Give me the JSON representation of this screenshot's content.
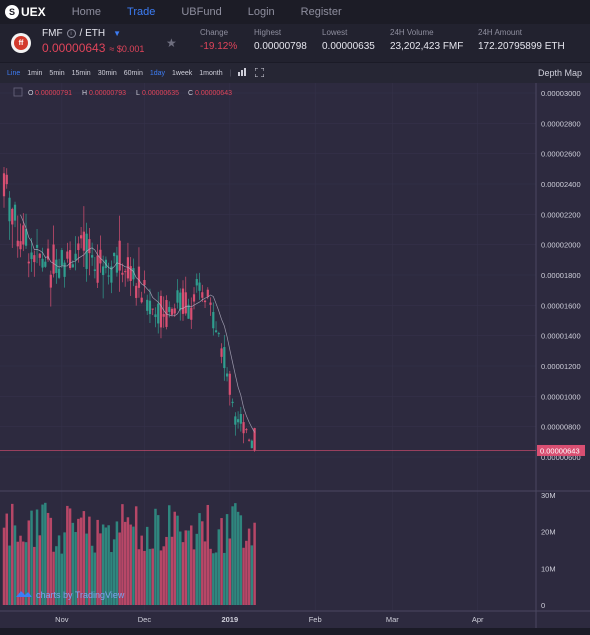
{
  "nav": {
    "logo": "UEX",
    "items": [
      "Home",
      "Trade",
      "UBFund",
      "Login",
      "Register"
    ],
    "active_index": 1
  },
  "ticker": {
    "base": "FMF",
    "quote": "/ ETH",
    "price": "0.00000643",
    "price_fiat": "≈ $0.001",
    "coin_glyph": "ff",
    "stats": [
      {
        "label": "Change",
        "value": "-19.12%",
        "negative": true
      },
      {
        "label": "Highest",
        "value": "0.00000798"
      },
      {
        "label": "Lowest",
        "value": "0.00000635"
      },
      {
        "label": "24H Volume",
        "value": "23,202,423 FMF"
      },
      {
        "label": "24H Amount",
        "value": "172.20795899 ETH"
      }
    ]
  },
  "toolbar": {
    "intervals": [
      "Line",
      "1min",
      "5min",
      "15min",
      "30min",
      "60min",
      "1day",
      "1week",
      "1month"
    ],
    "active": [
      "Line",
      "1day"
    ],
    "separator": "|",
    "depth_map": "Depth Map"
  },
  "chart": {
    "ohlc": {
      "O": "0.00000791",
      "H": "0.00000793",
      "L": "0.00000635",
      "C": "0.00000643"
    },
    "price_ticks": [
      "0.00003000",
      "0.00002800",
      "0.00002600",
      "0.00002400",
      "0.00002200",
      "0.00002000",
      "0.00001800",
      "0.00001600",
      "0.00001400",
      "0.00001200",
      "0.00001000",
      "0.00000800",
      "0.00000600"
    ],
    "current_price_label": "0.00000643",
    "volume_ticks": [
      "30M",
      "20M",
      "10M",
      "0"
    ],
    "time_ticks": [
      "Nov",
      "Dec",
      "2019",
      "Feb",
      "Mar",
      "Apr"
    ],
    "watermark": "charts by TradingView",
    "colors": {
      "up": "#2f9e8f",
      "down": "#d94f72",
      "bg": "#2d2a3f"
    }
  },
  "chart_data": {
    "type": "candlestick",
    "x_range": [
      "2018-10-11",
      "2019-04-20"
    ],
    "ylim": [
      6e-06,
      3e-05
    ],
    "volume_ylim": [
      0,
      30000000
    ],
    "last": {
      "open": 7.91e-06,
      "high": 7.93e-06,
      "low": 6.35e-06,
      "close": 6.43e-06
    },
    "approx_trend": [
      {
        "date": "2018-10-11",
        "price": 2.45e-05
      },
      {
        "date": "2018-10-16",
        "price": 2.1e-05
      },
      {
        "date": "2018-10-25",
        "price": 1.87e-05
      },
      {
        "date": "2018-11-10",
        "price": 1.95e-05
      },
      {
        "date": "2018-11-25",
        "price": 1.85e-05
      },
      {
        "date": "2018-12-05",
        "price": 1.55e-05
      },
      {
        "date": "2018-12-15",
        "price": 1.63e-05
      },
      {
        "date": "2018-12-24",
        "price": 1.64e-05
      },
      {
        "date": "2018-12-28",
        "price": 1.4e-05
      },
      {
        "date": "2019-01-03",
        "price": 9e-06
      },
      {
        "date": "2019-01-07",
        "price": 7.9e-06
      },
      {
        "date": "2019-01-10",
        "price": 6.43e-06
      }
    ]
  }
}
